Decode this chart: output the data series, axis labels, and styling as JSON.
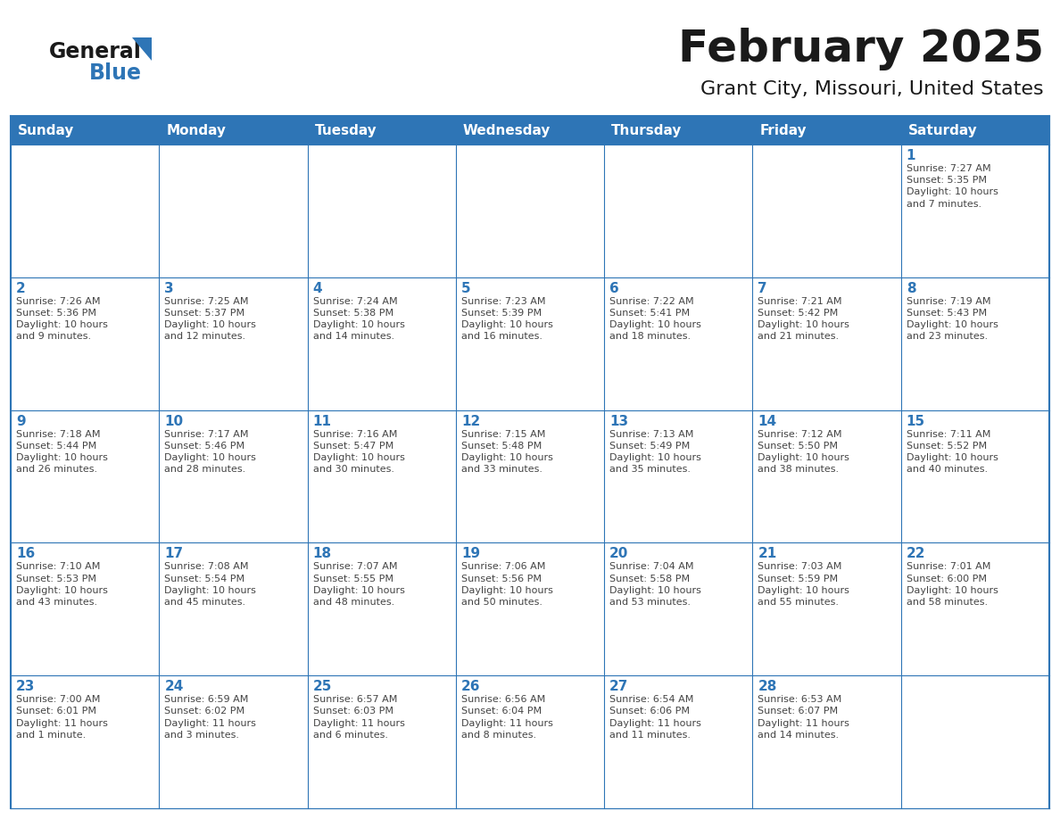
{
  "title": "February 2025",
  "subtitle": "Grant City, Missouri, United States",
  "header_bg": "#2E75B6",
  "header_text_color": "#FFFFFF",
  "cell_bg": "#FFFFFF",
  "border_color": "#2E75B6",
  "row_line_color": "#2E75B6",
  "title_color": "#1a1a1a",
  "subtitle_color": "#1a1a1a",
  "day_number_color": "#2E75B6",
  "cell_text_color": "#444444",
  "days_of_week": [
    "Sunday",
    "Monday",
    "Tuesday",
    "Wednesday",
    "Thursday",
    "Friday",
    "Saturday"
  ],
  "weeks": [
    [
      {
        "day": null,
        "text": ""
      },
      {
        "day": null,
        "text": ""
      },
      {
        "day": null,
        "text": ""
      },
      {
        "day": null,
        "text": ""
      },
      {
        "day": null,
        "text": ""
      },
      {
        "day": null,
        "text": ""
      },
      {
        "day": 1,
        "text": "Sunrise: 7:27 AM\nSunset: 5:35 PM\nDaylight: 10 hours\nand 7 minutes."
      }
    ],
    [
      {
        "day": 2,
        "text": "Sunrise: 7:26 AM\nSunset: 5:36 PM\nDaylight: 10 hours\nand 9 minutes."
      },
      {
        "day": 3,
        "text": "Sunrise: 7:25 AM\nSunset: 5:37 PM\nDaylight: 10 hours\nand 12 minutes."
      },
      {
        "day": 4,
        "text": "Sunrise: 7:24 AM\nSunset: 5:38 PM\nDaylight: 10 hours\nand 14 minutes."
      },
      {
        "day": 5,
        "text": "Sunrise: 7:23 AM\nSunset: 5:39 PM\nDaylight: 10 hours\nand 16 minutes."
      },
      {
        "day": 6,
        "text": "Sunrise: 7:22 AM\nSunset: 5:41 PM\nDaylight: 10 hours\nand 18 minutes."
      },
      {
        "day": 7,
        "text": "Sunrise: 7:21 AM\nSunset: 5:42 PM\nDaylight: 10 hours\nand 21 minutes."
      },
      {
        "day": 8,
        "text": "Sunrise: 7:19 AM\nSunset: 5:43 PM\nDaylight: 10 hours\nand 23 minutes."
      }
    ],
    [
      {
        "day": 9,
        "text": "Sunrise: 7:18 AM\nSunset: 5:44 PM\nDaylight: 10 hours\nand 26 minutes."
      },
      {
        "day": 10,
        "text": "Sunrise: 7:17 AM\nSunset: 5:46 PM\nDaylight: 10 hours\nand 28 minutes."
      },
      {
        "day": 11,
        "text": "Sunrise: 7:16 AM\nSunset: 5:47 PM\nDaylight: 10 hours\nand 30 minutes."
      },
      {
        "day": 12,
        "text": "Sunrise: 7:15 AM\nSunset: 5:48 PM\nDaylight: 10 hours\nand 33 minutes."
      },
      {
        "day": 13,
        "text": "Sunrise: 7:13 AM\nSunset: 5:49 PM\nDaylight: 10 hours\nand 35 minutes."
      },
      {
        "day": 14,
        "text": "Sunrise: 7:12 AM\nSunset: 5:50 PM\nDaylight: 10 hours\nand 38 minutes."
      },
      {
        "day": 15,
        "text": "Sunrise: 7:11 AM\nSunset: 5:52 PM\nDaylight: 10 hours\nand 40 minutes."
      }
    ],
    [
      {
        "day": 16,
        "text": "Sunrise: 7:10 AM\nSunset: 5:53 PM\nDaylight: 10 hours\nand 43 minutes."
      },
      {
        "day": 17,
        "text": "Sunrise: 7:08 AM\nSunset: 5:54 PM\nDaylight: 10 hours\nand 45 minutes."
      },
      {
        "day": 18,
        "text": "Sunrise: 7:07 AM\nSunset: 5:55 PM\nDaylight: 10 hours\nand 48 minutes."
      },
      {
        "day": 19,
        "text": "Sunrise: 7:06 AM\nSunset: 5:56 PM\nDaylight: 10 hours\nand 50 minutes."
      },
      {
        "day": 20,
        "text": "Sunrise: 7:04 AM\nSunset: 5:58 PM\nDaylight: 10 hours\nand 53 minutes."
      },
      {
        "day": 21,
        "text": "Sunrise: 7:03 AM\nSunset: 5:59 PM\nDaylight: 10 hours\nand 55 minutes."
      },
      {
        "day": 22,
        "text": "Sunrise: 7:01 AM\nSunset: 6:00 PM\nDaylight: 10 hours\nand 58 minutes."
      }
    ],
    [
      {
        "day": 23,
        "text": "Sunrise: 7:00 AM\nSunset: 6:01 PM\nDaylight: 11 hours\nand 1 minute."
      },
      {
        "day": 24,
        "text": "Sunrise: 6:59 AM\nSunset: 6:02 PM\nDaylight: 11 hours\nand 3 minutes."
      },
      {
        "day": 25,
        "text": "Sunrise: 6:57 AM\nSunset: 6:03 PM\nDaylight: 11 hours\nand 6 minutes."
      },
      {
        "day": 26,
        "text": "Sunrise: 6:56 AM\nSunset: 6:04 PM\nDaylight: 11 hours\nand 8 minutes."
      },
      {
        "day": 27,
        "text": "Sunrise: 6:54 AM\nSunset: 6:06 PM\nDaylight: 11 hours\nand 11 minutes."
      },
      {
        "day": 28,
        "text": "Sunrise: 6:53 AM\nSunset: 6:07 PM\nDaylight: 11 hours\nand 14 minutes."
      },
      {
        "day": null,
        "text": ""
      }
    ]
  ],
  "logo_general_color": "#1a1a1a",
  "logo_blue_color": "#2E75B6",
  "fig_width": 11.88,
  "fig_height": 9.18,
  "dpi": 100
}
